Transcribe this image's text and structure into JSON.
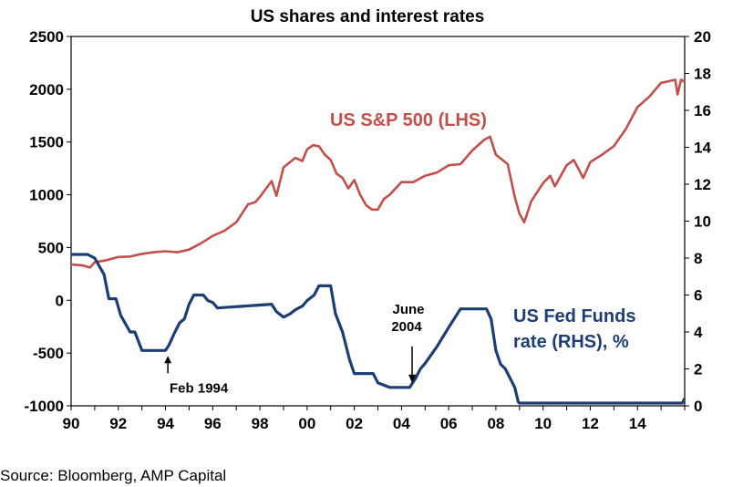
{
  "chart_data": {
    "type": "line",
    "title": "US shares and interest rates",
    "source": "Source: Bloomberg, AMP Capital",
    "x_ticks": [
      "90",
      "92",
      "94",
      "96",
      "98",
      "00",
      "02",
      "04",
      "06",
      "08",
      "10",
      "12",
      "14"
    ],
    "x_range": [
      1990,
      2016
    ],
    "y_left": {
      "range": [
        -1000,
        2500
      ],
      "ticks": [
        "2500",
        "2000",
        "1500",
        "1000",
        "500",
        "0",
        "-500",
        "-1000"
      ]
    },
    "y_right": {
      "range": [
        0,
        20
      ],
      "ticks": [
        "20",
        "18",
        "16",
        "14",
        "12",
        "10",
        "8",
        "6",
        "4",
        "2",
        "0"
      ]
    },
    "grid": false,
    "series": [
      {
        "name": "US S&P 500 (LHS)",
        "axis": "left",
        "color": "#c0504d",
        "x": [
          1990.0,
          1990.5,
          1990.8,
          1991.0,
          1991.5,
          1992.0,
          1992.5,
          1993.0,
          1993.5,
          1994.0,
          1994.5,
          1995.0,
          1995.5,
          1996.0,
          1996.5,
          1997.0,
          1997.5,
          1997.8,
          1998.0,
          1998.5,
          1998.7,
          1999.0,
          1999.5,
          1999.8,
          2000.0,
          2000.25,
          2000.5,
          2000.75,
          2001.0,
          2001.25,
          2001.5,
          2001.75,
          2002.0,
          2002.25,
          2002.5,
          2002.75,
          2003.0,
          2003.25,
          2003.5,
          2004.0,
          2004.5,
          2005.0,
          2005.5,
          2006.0,
          2006.5,
          2007.0,
          2007.5,
          2007.75,
          2008.0,
          2008.5,
          2008.8,
          2009.0,
          2009.2,
          2009.5,
          2010.0,
          2010.3,
          2010.5,
          2011.0,
          2011.3,
          2011.7,
          2012.0,
          2012.5,
          2013.0,
          2013.5,
          2014.0,
          2014.5,
          2015.0,
          2015.4,
          2015.6,
          2015.7,
          2015.85,
          2016.0
        ],
        "values": [
          340,
          330,
          310,
          360,
          380,
          410,
          415,
          440,
          455,
          465,
          455,
          480,
          540,
          610,
          660,
          740,
          910,
          930,
          980,
          1130,
          990,
          1260,
          1350,
          1320,
          1430,
          1470,
          1460,
          1380,
          1330,
          1200,
          1160,
          1060,
          1140,
          1000,
          900,
          860,
          860,
          960,
          1000,
          1120,
          1120,
          1180,
          1210,
          1280,
          1290,
          1420,
          1520,
          1550,
          1380,
          1290,
          980,
          820,
          740,
          940,
          1110,
          1180,
          1080,
          1280,
          1330,
          1160,
          1310,
          1380,
          1460,
          1620,
          1830,
          1930,
          2060,
          2080,
          2090,
          1950,
          2090,
          2070
        ]
      },
      {
        "name": "US Fed Funds rate (RHS), %",
        "axis": "right",
        "color": "#1f3d73",
        "x": [
          1990.0,
          1990.7,
          1991.0,
          1991.4,
          1991.6,
          1991.9,
          1992.1,
          1992.5,
          1992.7,
          1993.0,
          1994.0,
          1994.15,
          1994.4,
          1994.6,
          1994.8,
          1995.0,
          1995.2,
          1995.6,
          1995.8,
          1996.0,
          1996.2,
          1998.5,
          1998.7,
          1999.0,
          1999.3,
          1999.5,
          1999.8,
          2000.0,
          2000.3,
          2000.5,
          2001.0,
          2001.2,
          2001.5,
          2001.8,
          2002.0,
          2002.8,
          2003.0,
          2003.5,
          2004.35,
          2004.6,
          2004.8,
          2005.0,
          2005.5,
          2006.0,
          2006.5,
          2007.6,
          2007.8,
          2008.0,
          2008.2,
          2008.4,
          2008.8,
          2008.95,
          2009.0,
          2015.9,
          2016.0
        ],
        "values": [
          8.2,
          8.2,
          8.0,
          7.1,
          5.8,
          5.8,
          4.9,
          4.0,
          4.0,
          3.0,
          3.0,
          3.3,
          4.0,
          4.5,
          4.7,
          5.5,
          6.0,
          6.0,
          5.7,
          5.6,
          5.3,
          5.5,
          5.1,
          4.8,
          5.0,
          5.2,
          5.4,
          5.7,
          6.0,
          6.5,
          6.5,
          5.0,
          4.0,
          2.5,
          1.75,
          1.75,
          1.25,
          1.0,
          1.0,
          1.5,
          2.0,
          2.3,
          3.2,
          4.25,
          5.25,
          5.25,
          4.7,
          3.0,
          2.25,
          2.0,
          1.0,
          0.2,
          0.15,
          0.15,
          0.4
        ]
      }
    ],
    "annotations": [
      {
        "line1": "Feb 1994",
        "line2": "",
        "x": 1994.1,
        "y": 3.0
      },
      {
        "line1": "June",
        "line2": "2004",
        "x": 2004.45,
        "y": 1.0
      }
    ]
  }
}
